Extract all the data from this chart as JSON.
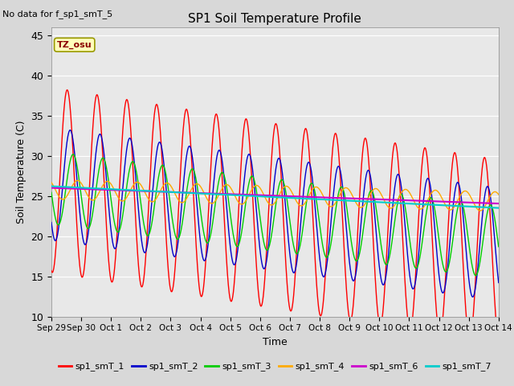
{
  "title": "SP1 Soil Temperature Profile",
  "xlabel": "Time",
  "ylabel": "Soil Temperature (C)",
  "no_data_text": "No data for f_sp1_smT_5",
  "tz_label": "TZ_osu",
  "ylim": [
    10,
    46
  ],
  "yticks": [
    10,
    15,
    20,
    25,
    30,
    35,
    40,
    45
  ],
  "legend_labels": [
    "sp1_smT_1",
    "sp1_smT_2",
    "sp1_smT_3",
    "sp1_smT_4",
    "sp1_smT_6",
    "sp1_smT_7"
  ],
  "legend_colors": [
    "#ff0000",
    "#0000cc",
    "#00cc00",
    "#ffaa00",
    "#cc00cc",
    "#00cccc"
  ],
  "xtick_labels": [
    "Sep 29",
    "Sep 30",
    "Oct 1",
    "Oct 2",
    "Oct 3",
    "Oct 4",
    "Oct 5",
    "Oct 6",
    "Oct 7",
    "Oct 8",
    "Oct 9",
    "Oct 10",
    "Oct 11",
    "Oct 12",
    "Oct 13",
    "Oct 14"
  ],
  "fig_facecolor": "#d8d8d8",
  "ax_facecolor": "#e8e8e8",
  "grid_color": "#ffffff"
}
